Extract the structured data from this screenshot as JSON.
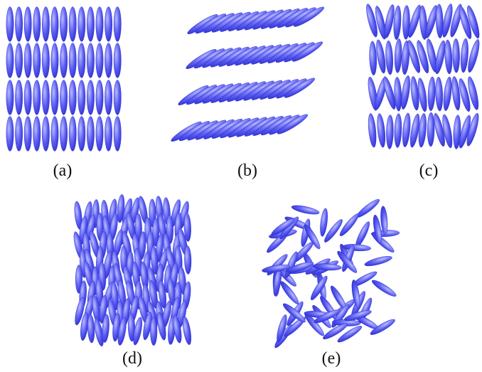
{
  "colors": {
    "ellipsoid_dark": "#2e2ecf",
    "ellipsoid_mid": "#5a5cf0",
    "ellipsoid_light": "#b9bcff",
    "background": "#ffffff",
    "label": "#111111"
  },
  "panels": [
    {
      "id": "a",
      "label": "(a)",
      "arrangement": "aligned-columns"
    },
    {
      "id": "b",
      "label": "(b)",
      "arrangement": "tilted-layers"
    },
    {
      "id": "c",
      "label": "(c)",
      "arrangement": "layers-slight-disorder"
    },
    {
      "id": "d",
      "label": "(d)",
      "arrangement": "aligned-no-layers"
    },
    {
      "id": "e",
      "label": "(e)",
      "arrangement": "isotropic"
    }
  ]
}
